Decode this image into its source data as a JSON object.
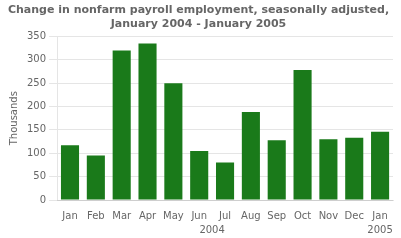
{
  "chart_data": {
    "type": "bar",
    "title": "Change in nonfarm payroll employment, seasonally adjusted,\nJanuary 2004 - January 2005",
    "ylabel": "Thousands",
    "categories": [
      "Jan",
      "Feb",
      "Mar",
      "Apr",
      "May",
      "Jun",
      "Jul",
      "Aug",
      "Sep",
      "Oct",
      "Nov",
      "Dec",
      "Jan"
    ],
    "values": [
      117,
      95,
      320,
      335,
      250,
      105,
      80,
      188,
      128,
      278,
      130,
      133,
      146
    ],
    "color": "#1a7a1a",
    "ylim": [
      0,
      350
    ],
    "yticks": [
      0,
      50,
      100,
      150,
      200,
      250,
      300,
      350
    ],
    "grid": true,
    "annotations": [
      "2004",
      "2005"
    ]
  }
}
